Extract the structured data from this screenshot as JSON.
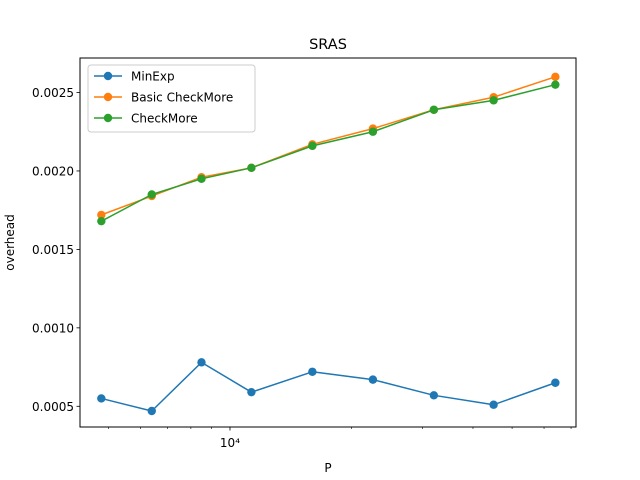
{
  "chart_data": {
    "type": "line",
    "title": "SRAS",
    "xlabel": "P",
    "ylabel": "overhead",
    "x_scale": "log",
    "x": [
      4800,
      6400,
      8500,
      11300,
      16000,
      22600,
      32000,
      45000,
      64000
    ],
    "xlim": [
      4250,
      72000
    ],
    "ylim": [
      0.000368,
      0.00272
    ],
    "x_ticks": [
      {
        "value": 10000,
        "label": "10⁴"
      }
    ],
    "y_ticks": [
      {
        "value": 0.0005,
        "label": "0.0005"
      },
      {
        "value": 0.001,
        "label": "0.0010"
      },
      {
        "value": 0.0015,
        "label": "0.0015"
      },
      {
        "value": 0.002,
        "label": "0.0020"
      },
      {
        "value": 0.0025,
        "label": "0.0025"
      }
    ],
    "grid": false,
    "legend_position": "upper-left",
    "series": [
      {
        "name": "MinExp",
        "color": "#1f77b4",
        "values": [
          0.00055,
          0.00047,
          0.00078,
          0.00059,
          0.00072,
          0.00067,
          0.00057,
          0.00051,
          0.00065
        ]
      },
      {
        "name": "Basic CheckMore",
        "color": "#ff7f0e",
        "values": [
          0.00172,
          0.00184,
          0.00196,
          0.00202,
          0.00217,
          0.00227,
          0.00239,
          0.00247,
          0.0026
        ]
      },
      {
        "name": "CheckMore",
        "color": "#2ca02c",
        "values": [
          0.00168,
          0.00185,
          0.00195,
          0.00202,
          0.00216,
          0.00225,
          0.00239,
          0.00245,
          0.00255
        ]
      }
    ]
  }
}
